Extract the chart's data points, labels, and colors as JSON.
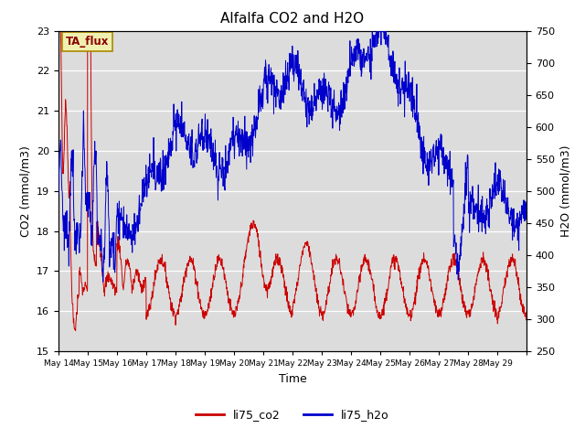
{
  "title": "Alfalfa CO2 and H2O",
  "xlabel": "Time",
  "ylabel_left": "CO2 (mmol/m3)",
  "ylabel_right": "H2O (mmol/m3)",
  "annotation": "TA_flux",
  "ylim_left": [
    15.0,
    23.0
  ],
  "ylim_right": [
    250,
    750
  ],
  "bg_color": "#dcdcdc",
  "fig_color": "#ffffff",
  "line_co2_color": "#cc0000",
  "line_h2o_color": "#0000cc",
  "legend_entries": [
    "li75_co2",
    "li75_h2o"
  ],
  "xtick_labels": [
    "May 14",
    "May 15",
    "May 16",
    "May 17",
    "May 18",
    "May 19",
    "May 20",
    "May 21",
    "May 22",
    "May 23",
    "May 24",
    "May 25",
    "May 26",
    "May 27",
    "May 28",
    "May 29"
  ],
  "n_days": 16,
  "points_per_day": 96
}
